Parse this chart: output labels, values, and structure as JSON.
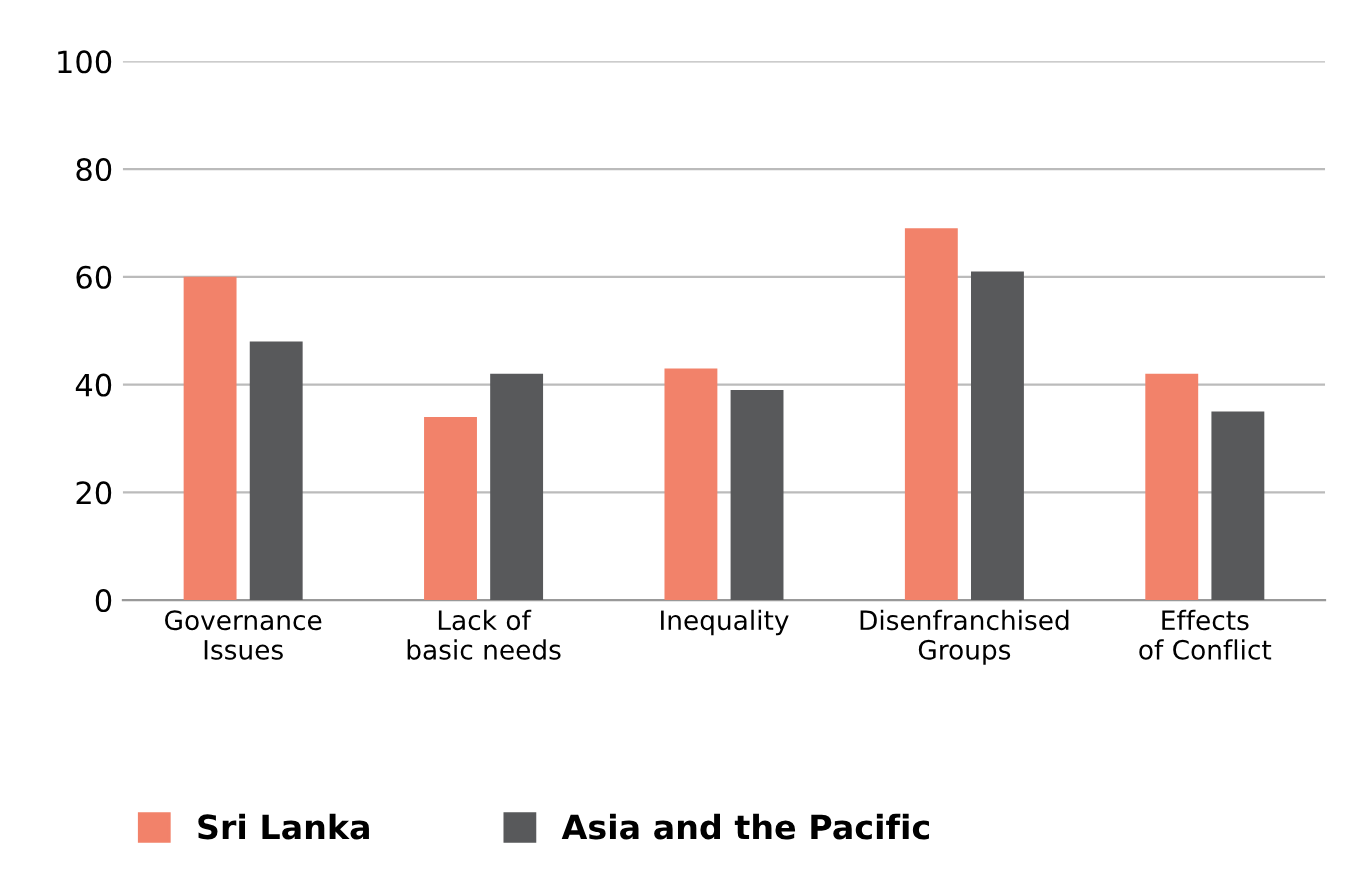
{
  "chart_data": {
    "type": "bar",
    "categories": [
      "Governance\nIssues",
      "Lack of\nbasic needs",
      "Inequality",
      "Disenfranchised\nGroups",
      "Effects\nof Conflict"
    ],
    "series": [
      {
        "name": "Sri Lanka",
        "color": "#f2826a",
        "values": [
          60,
          34,
          43,
          69,
          42
        ]
      },
      {
        "name": "Asia and the Pacific",
        "color": "#58595b",
        "values": [
          48,
          42,
          39,
          61,
          35
        ]
      }
    ],
    "ylim": [
      0,
      100
    ],
    "yticks": [
      0,
      20,
      40,
      60,
      80,
      100
    ],
    "grid": "y",
    "legend": "bottom left"
  }
}
